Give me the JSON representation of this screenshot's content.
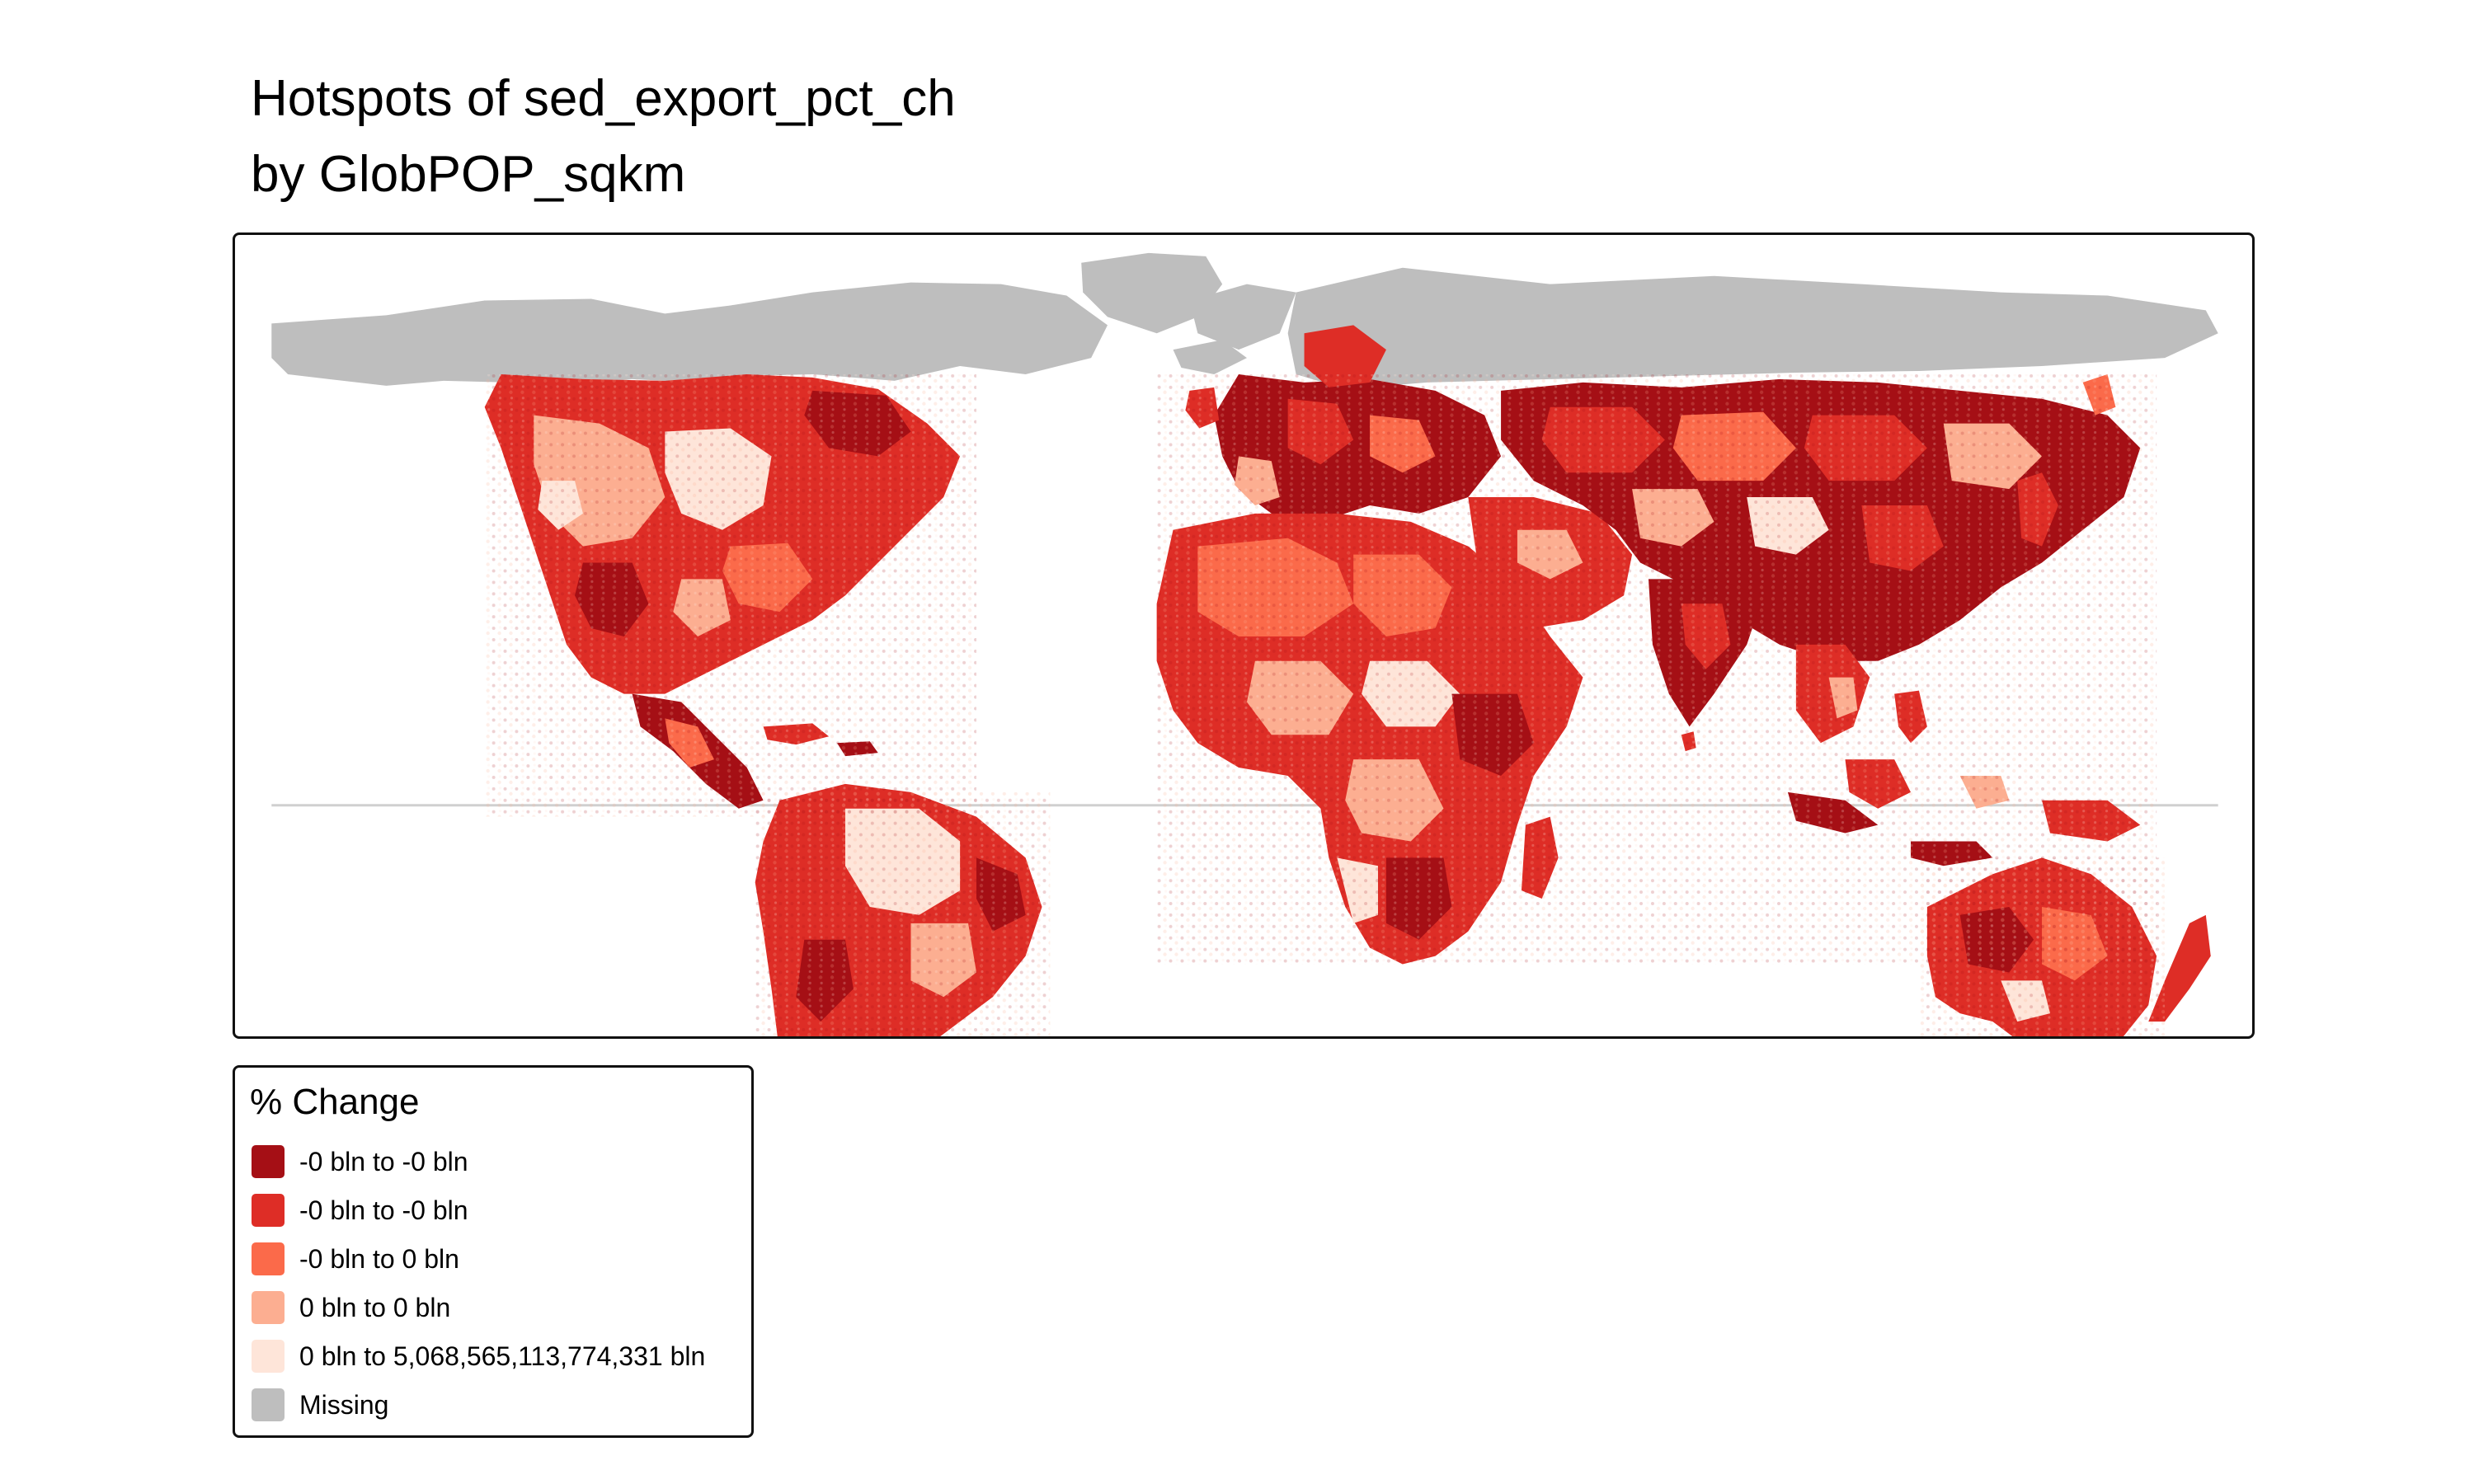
{
  "title": {
    "line1": "Hotspots of sed_export_pct_ch",
    "line2": "by GlobPOP_sqkm"
  },
  "legend": {
    "title": "% Change",
    "items": [
      {
        "label": "-0 bln to -0 bln",
        "color": "#a50f15"
      },
      {
        "label": "-0 bln to -0 bln",
        "color": "#de2d26"
      },
      {
        "label": "-0 bln to 0 bln",
        "color": "#fb6a4a"
      },
      {
        "label": "0 bln to 0 bln",
        "color": "#fcae91"
      },
      {
        "label": "0 bln to 5,068,565,113,774,331 bln",
        "color": "#fee5d9"
      },
      {
        "label": "Missing",
        "color": "#bebebe"
      }
    ]
  },
  "map": {
    "missing_color": "#bebebe",
    "background": "#ffffff"
  }
}
